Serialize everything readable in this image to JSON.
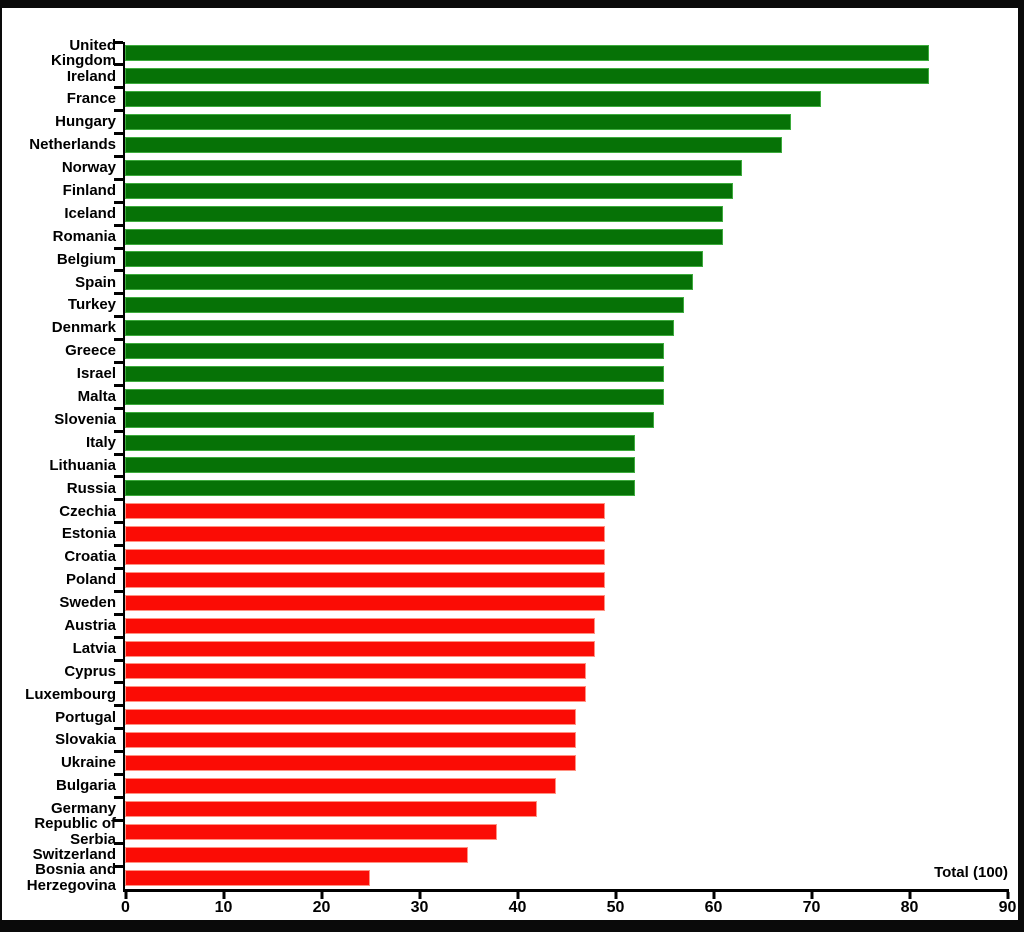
{
  "window": {
    "frame_color": "#0a0a0a",
    "canvas_color": "#ffffff"
  },
  "chart_data": {
    "type": "bar",
    "orientation": "horizontal",
    "title": "",
    "xlabel": "",
    "ylabel": "",
    "corner_label": "Total (100)",
    "xlim": [
      0,
      90
    ],
    "x_ticks": [
      0,
      10,
      20,
      30,
      40,
      50,
      60,
      70,
      80,
      90
    ],
    "grid": false,
    "legend_position": "none",
    "palette": {
      "pass": {
        "fill": "#067206",
        "edge": "#3dab3d"
      },
      "fail": {
        "fill": "#fb0c05",
        "edge": "#ff9182"
      },
      "axis": "#000000"
    },
    "bars": [
      {
        "label": "United Kingdom",
        "value": 82,
        "status": "pass"
      },
      {
        "label": "Ireland",
        "value": 82,
        "status": "pass"
      },
      {
        "label": "France",
        "value": 71,
        "status": "pass"
      },
      {
        "label": "Hungary",
        "value": 68,
        "status": "pass"
      },
      {
        "label": "Netherlands",
        "value": 67,
        "status": "pass"
      },
      {
        "label": "Norway",
        "value": 63,
        "status": "pass"
      },
      {
        "label": "Finland",
        "value": 62,
        "status": "pass"
      },
      {
        "label": "Iceland",
        "value": 61,
        "status": "pass"
      },
      {
        "label": "Romania",
        "value": 61,
        "status": "pass"
      },
      {
        "label": "Belgium",
        "value": 59,
        "status": "pass"
      },
      {
        "label": "Spain",
        "value": 58,
        "status": "pass"
      },
      {
        "label": "Turkey",
        "value": 57,
        "status": "pass"
      },
      {
        "label": "Denmark",
        "value": 56,
        "status": "pass"
      },
      {
        "label": "Greece",
        "value": 55,
        "status": "pass"
      },
      {
        "label": "Israel",
        "value": 55,
        "status": "pass"
      },
      {
        "label": "Malta",
        "value": 55,
        "status": "pass"
      },
      {
        "label": "Slovenia",
        "value": 54,
        "status": "pass"
      },
      {
        "label": "Italy",
        "value": 52,
        "status": "pass"
      },
      {
        "label": "Lithuania",
        "value": 52,
        "status": "pass"
      },
      {
        "label": "Russia",
        "value": 52,
        "status": "pass"
      },
      {
        "label": "Czechia",
        "value": 49,
        "status": "fail"
      },
      {
        "label": "Estonia",
        "value": 49,
        "status": "fail"
      },
      {
        "label": "Croatia",
        "value": 49,
        "status": "fail"
      },
      {
        "label": "Poland",
        "value": 49,
        "status": "fail"
      },
      {
        "label": "Sweden",
        "value": 49,
        "status": "fail"
      },
      {
        "label": "Austria",
        "value": 48,
        "status": "fail"
      },
      {
        "label": "Latvia",
        "value": 48,
        "status": "fail"
      },
      {
        "label": "Cyprus",
        "value": 47,
        "status": "fail"
      },
      {
        "label": "Luxembourg",
        "value": 47,
        "status": "fail"
      },
      {
        "label": "Portugal",
        "value": 46,
        "status": "fail"
      },
      {
        "label": "Slovakia",
        "value": 46,
        "status": "fail"
      },
      {
        "label": "Ukraine",
        "value": 46,
        "status": "fail"
      },
      {
        "label": "Bulgaria",
        "value": 44,
        "status": "fail"
      },
      {
        "label": "Germany",
        "value": 42,
        "status": "fail"
      },
      {
        "label": "Republic of Serbia",
        "value": 38,
        "status": "fail"
      },
      {
        "label": "Switzerland",
        "value": 35,
        "status": "fail"
      },
      {
        "label": "Bosnia and Herzegovina",
        "value": 25,
        "status": "fail"
      }
    ]
  }
}
